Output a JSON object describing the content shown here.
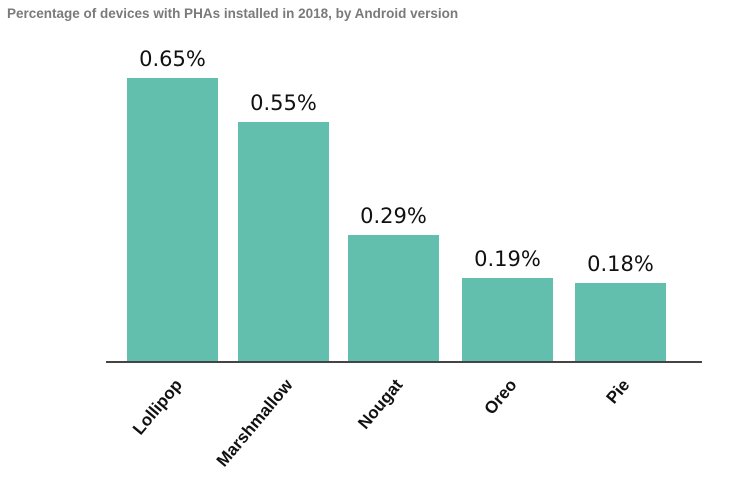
{
  "title": "Percentage of devices with PHAs installed in 2018, by Android version",
  "bar_color": "#62bfad",
  "chart_data": {
    "type": "bar",
    "title": "Percentage of devices with PHAs installed in 2018, by Android version",
    "categories": [
      "Lollipop",
      "Marshmallow",
      "Nougat",
      "Oreo",
      "Pie"
    ],
    "values": [
      0.65,
      0.55,
      0.29,
      0.19,
      0.18
    ],
    "value_labels": [
      "0.65%",
      "0.55%",
      "0.29%",
      "0.19%",
      "0.18%"
    ],
    "xlabel": "",
    "ylabel": "",
    "unit": "%",
    "grid": false,
    "legend": null,
    "ylim": [
      0,
      0.65
    ]
  }
}
